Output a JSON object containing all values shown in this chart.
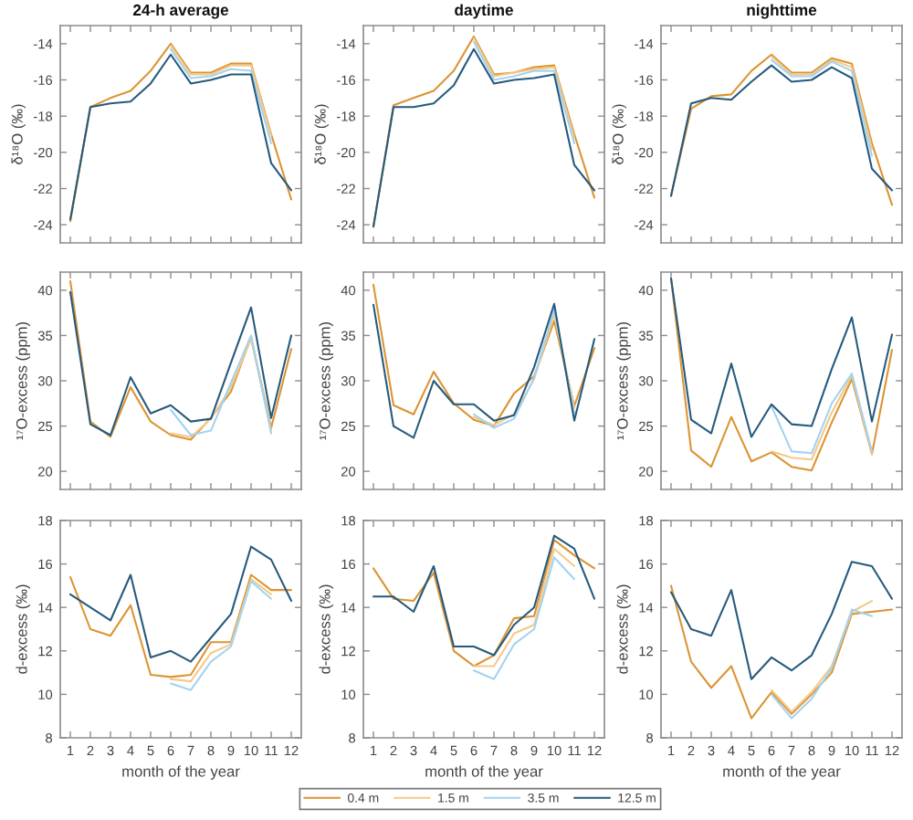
{
  "chart_data": [
    {
      "type": "line",
      "title": "24-h average",
      "ylabel": "δ¹⁸O (‰)",
      "x": [
        1,
        2,
        3,
        4,
        5,
        6,
        7,
        8,
        9,
        10,
        11,
        12
      ],
      "xlim": [
        0.5,
        12.5
      ],
      "xticks": [
        1,
        2,
        3,
        4,
        5,
        6,
        7,
        8,
        9,
        10,
        11,
        12
      ],
      "ylim": [
        -25,
        -13
      ],
      "yticks": [
        -24,
        -22,
        -20,
        -18,
        -16,
        -14
      ],
      "tick_labels": "y",
      "series": [
        {
          "color": "#dc9433",
          "values": [
            -23.8,
            -17.5,
            -17.0,
            -16.6,
            -15.5,
            -14.0,
            -15.6,
            -15.6,
            -15.1,
            -15.1,
            -19.0,
            -22.6
          ]
        },
        {
          "color": "#f5c987",
          "values": [
            null,
            null,
            null,
            null,
            null,
            -14.1,
            -15.7,
            -15.7,
            -15.2,
            -15.2,
            -19.1,
            null
          ]
        },
        {
          "color": "#a3d3f0",
          "values": [
            null,
            null,
            null,
            null,
            null,
            -14.3,
            -15.9,
            -15.8,
            -15.4,
            -15.5,
            -19.5,
            null
          ]
        },
        {
          "color": "#265a7e",
          "values": [
            -23.7,
            -17.5,
            -17.3,
            -17.2,
            -16.2,
            -14.6,
            -16.2,
            -16.0,
            -15.7,
            -15.7,
            -20.6,
            -22.1
          ]
        }
      ]
    },
    {
      "type": "line",
      "title": "daytime",
      "ylabel": "δ¹⁸O (‰)",
      "x": [
        1,
        2,
        3,
        4,
        5,
        6,
        7,
        8,
        9,
        10,
        11,
        12
      ],
      "xlim": [
        0.5,
        12.5
      ],
      "xticks": [
        1,
        2,
        3,
        4,
        5,
        6,
        7,
        8,
        9,
        10,
        11,
        12
      ],
      "ylim": [
        -25,
        -13
      ],
      "yticks": [
        -24,
        -22,
        -20,
        -18,
        -16,
        -14
      ],
      "tick_labels": "y",
      "series": [
        {
          "color": "#dc9433",
          "values": [
            -24.1,
            -17.4,
            -17.0,
            -16.6,
            -15.5,
            -13.6,
            -15.7,
            -15.6,
            -15.3,
            -15.2,
            -19.0,
            -22.5
          ]
        },
        {
          "color": "#f5c987",
          "values": [
            null,
            null,
            null,
            null,
            null,
            -13.7,
            -15.8,
            -15.6,
            -15.4,
            -15.3,
            -19.2,
            null
          ]
        },
        {
          "color": "#a3d3f0",
          "values": [
            null,
            null,
            null,
            null,
            null,
            -13.9,
            -16.0,
            -15.8,
            -15.5,
            -15.5,
            -19.5,
            null
          ]
        },
        {
          "color": "#265a7e",
          "values": [
            -24.1,
            -17.5,
            -17.5,
            -17.3,
            -16.3,
            -14.3,
            -16.2,
            -16.0,
            -15.9,
            -15.7,
            -20.7,
            -22.1
          ]
        }
      ]
    },
    {
      "type": "line",
      "title": "nighttime",
      "ylabel": "δ¹⁸O (‰)",
      "x": [
        1,
        2,
        3,
        4,
        5,
        6,
        7,
        8,
        9,
        10,
        11,
        12
      ],
      "xlim": [
        0.5,
        12.5
      ],
      "xticks": [
        1,
        2,
        3,
        4,
        5,
        6,
        7,
        8,
        9,
        10,
        11,
        12
      ],
      "ylim": [
        -25,
        -13
      ],
      "yticks": [
        -24,
        -22,
        -20,
        -18,
        -16,
        -14
      ],
      "tick_labels": "y",
      "series": [
        {
          "color": "#dc9433",
          "values": [
            -22.4,
            -17.6,
            -16.9,
            -16.8,
            -15.5,
            -14.6,
            -15.6,
            -15.6,
            -14.8,
            -15.1,
            -19.5,
            -22.9
          ]
        },
        {
          "color": "#f5c987",
          "values": [
            null,
            null,
            null,
            null,
            null,
            -14.7,
            -15.7,
            -15.7,
            -14.9,
            -15.3,
            -19.8,
            null
          ]
        },
        {
          "color": "#a3d3f0",
          "values": [
            null,
            null,
            null,
            null,
            null,
            -14.9,
            -15.8,
            -15.8,
            -15.0,
            -15.5,
            -20.2,
            null
          ]
        },
        {
          "color": "#265a7e",
          "values": [
            -22.4,
            -17.3,
            -17.0,
            -17.1,
            -16.1,
            -15.2,
            -16.1,
            -16.0,
            -15.3,
            -15.9,
            -20.9,
            -22.1
          ]
        }
      ]
    },
    {
      "type": "line",
      "ylabel": "¹⁷O-excess (ppm)",
      "x": [
        1,
        2,
        3,
        4,
        5,
        6,
        7,
        8,
        9,
        10,
        11,
        12
      ],
      "xlim": [
        0.5,
        12.5
      ],
      "xticks": [
        1,
        2,
        3,
        4,
        5,
        6,
        7,
        8,
        9,
        10,
        11,
        12
      ],
      "ylim": [
        18,
        42
      ],
      "yticks": [
        20,
        25,
        30,
        35,
        40
      ],
      "tick_labels": "y",
      "series": [
        {
          "color": "#dc9433",
          "values": [
            41.0,
            25.5,
            23.8,
            29.3,
            25.5,
            24.0,
            23.5,
            25.9,
            28.8,
            34.8,
            24.8,
            33.5
          ]
        },
        {
          "color": "#f5c987",
          "values": [
            null,
            null,
            null,
            null,
            null,
            24.2,
            23.8,
            25.8,
            29.3,
            34.6,
            24.5,
            null
          ]
        },
        {
          "color": "#a3d3f0",
          "values": [
            null,
            null,
            null,
            null,
            null,
            26.8,
            24.0,
            24.5,
            29.8,
            35.0,
            24.2,
            null
          ]
        },
        {
          "color": "#265a7e",
          "values": [
            39.8,
            25.2,
            24.0,
            30.4,
            26.4,
            27.3,
            25.5,
            25.8,
            32.0,
            38.1,
            25.9,
            35.0
          ]
        }
      ]
    },
    {
      "type": "line",
      "ylabel": "¹⁷O-excess (ppm)",
      "x": [
        1,
        2,
        3,
        4,
        5,
        6,
        7,
        8,
        9,
        10,
        11,
        12
      ],
      "xlim": [
        0.5,
        12.5
      ],
      "xticks": [
        1,
        2,
        3,
        4,
        5,
        6,
        7,
        8,
        9,
        10,
        11,
        12
      ],
      "ylim": [
        18,
        42
      ],
      "yticks": [
        20,
        25,
        30,
        35,
        40
      ],
      "tick_labels": "y",
      "series": [
        {
          "color": "#dc9433",
          "values": [
            40.6,
            27.3,
            26.3,
            31.0,
            27.5,
            25.7,
            25.0,
            28.6,
            30.5,
            36.6,
            27.2,
            33.6
          ]
        },
        {
          "color": "#f5c987",
          "values": [
            null,
            null,
            null,
            null,
            null,
            26.0,
            25.1,
            26.3,
            30.2,
            37.3,
            27.0,
            null
          ]
        },
        {
          "color": "#a3d3f0",
          "values": [
            null,
            null,
            null,
            null,
            null,
            26.3,
            24.8,
            25.8,
            30.3,
            37.8,
            26.4,
            null
          ]
        },
        {
          "color": "#265a7e",
          "values": [
            38.4,
            25.0,
            23.7,
            30.0,
            27.4,
            27.4,
            25.6,
            26.2,
            31.5,
            38.5,
            25.6,
            34.6
          ]
        }
      ]
    },
    {
      "type": "line",
      "ylabel": "¹⁷O-excess (ppm)",
      "x": [
        1,
        2,
        3,
        4,
        5,
        6,
        7,
        8,
        9,
        10,
        11,
        12
      ],
      "xlim": [
        0.5,
        12.5
      ],
      "xticks": [
        1,
        2,
        3,
        4,
        5,
        6,
        7,
        8,
        9,
        10,
        11,
        12
      ],
      "ylim": [
        18,
        42
      ],
      "yticks": [
        20,
        25,
        30,
        35,
        40
      ],
      "tick_labels": "y",
      "series": [
        {
          "color": "#dc9433",
          "values": [
            41.3,
            22.3,
            20.5,
            26.0,
            21.1,
            22.1,
            20.5,
            20.1,
            25.4,
            30.2,
            21.9,
            33.4
          ]
        },
        {
          "color": "#f5c987",
          "values": [
            null,
            null,
            null,
            null,
            null,
            22.2,
            21.5,
            21.3,
            26.5,
            30.6,
            22.0,
            null
          ]
        },
        {
          "color": "#a3d3f0",
          "values": [
            null,
            null,
            null,
            null,
            null,
            27.2,
            22.2,
            22.0,
            27.5,
            30.8,
            22.2,
            null
          ]
        },
        {
          "color": "#265a7e",
          "values": [
            41.3,
            25.7,
            24.2,
            31.9,
            23.8,
            27.4,
            25.2,
            25.0,
            31.3,
            37.0,
            25.5,
            35.1
          ]
        }
      ]
    },
    {
      "type": "line",
      "ylabel": "d-excess (‰)",
      "xlabel": "month of the year",
      "x": [
        1,
        2,
        3,
        4,
        5,
        6,
        7,
        8,
        9,
        10,
        11,
        12
      ],
      "xlim": [
        0.5,
        12.5
      ],
      "xticks": [
        1,
        2,
        3,
        4,
        5,
        6,
        7,
        8,
        9,
        10,
        11,
        12
      ],
      "ylim": [
        8,
        18
      ],
      "yticks": [
        8,
        10,
        12,
        14,
        16,
        18
      ],
      "series": [
        {
          "color": "#dc9433",
          "values": [
            15.4,
            13.0,
            12.7,
            14.1,
            10.9,
            10.8,
            10.9,
            12.4,
            12.4,
            15.5,
            14.8,
            14.8
          ]
        },
        {
          "color": "#f5c987",
          "values": [
            null,
            null,
            null,
            null,
            null,
            10.7,
            10.6,
            11.9,
            12.3,
            15.3,
            14.6,
            null
          ]
        },
        {
          "color": "#a3d3f0",
          "values": [
            null,
            null,
            null,
            null,
            null,
            10.5,
            10.2,
            11.5,
            12.2,
            15.2,
            14.4,
            null
          ]
        },
        {
          "color": "#265a7e",
          "values": [
            14.6,
            14.0,
            13.4,
            15.5,
            11.7,
            12.0,
            11.5,
            12.6,
            13.7,
            16.8,
            16.2,
            14.3
          ]
        }
      ]
    },
    {
      "type": "line",
      "ylabel": "d-excess (‰)",
      "xlabel": "month of the year",
      "x": [
        1,
        2,
        3,
        4,
        5,
        6,
        7,
        8,
        9,
        10,
        11,
        12
      ],
      "xlim": [
        0.5,
        12.5
      ],
      "xticks": [
        1,
        2,
        3,
        4,
        5,
        6,
        7,
        8,
        9,
        10,
        11,
        12
      ],
      "ylim": [
        8,
        18
      ],
      "yticks": [
        8,
        10,
        12,
        14,
        16,
        18
      ],
      "legend": "bottom",
      "series": [
        {
          "name": "0.4 m",
          "color": "#dc9433",
          "values": [
            15.8,
            14.4,
            14.3,
            15.6,
            12.0,
            11.3,
            11.8,
            13.5,
            13.6,
            17.1,
            16.4,
            15.8
          ]
        },
        {
          "name": "1.5 m",
          "color": "#f5c987",
          "values": [
            null,
            null,
            null,
            null,
            null,
            11.3,
            11.3,
            12.8,
            13.2,
            16.7,
            15.9,
            null
          ]
        },
        {
          "name": "3.5 m",
          "color": "#a3d3f0",
          "values": [
            null,
            null,
            null,
            null,
            null,
            11.1,
            10.7,
            12.3,
            13.0,
            16.3,
            15.3,
            null
          ]
        },
        {
          "name": "12.5 m",
          "color": "#265a7e",
          "values": [
            14.5,
            14.5,
            13.8,
            15.9,
            12.2,
            12.2,
            11.8,
            13.2,
            14.0,
            17.3,
            16.7,
            14.4
          ]
        }
      ]
    },
    {
      "type": "line",
      "ylabel": "d-excess (‰)",
      "xlabel": "month of the year",
      "x": [
        1,
        2,
        3,
        4,
        5,
        6,
        7,
        8,
        9,
        10,
        11,
        12
      ],
      "xlim": [
        0.5,
        12.5
      ],
      "xticks": [
        1,
        2,
        3,
        4,
        5,
        6,
        7,
        8,
        9,
        10,
        11,
        12
      ],
      "ylim": [
        8,
        18
      ],
      "yticks": [
        8,
        10,
        12,
        14,
        16,
        18
      ],
      "series": [
        {
          "color": "#dc9433",
          "values": [
            15.0,
            11.5,
            10.3,
            11.3,
            8.9,
            10.1,
            9.1,
            10.0,
            11.0,
            13.7,
            13.8,
            13.9
          ]
        },
        {
          "color": "#f5c987",
          "values": [
            null,
            null,
            null,
            null,
            null,
            10.2,
            9.2,
            10.1,
            11.3,
            13.8,
            14.3,
            null
          ]
        },
        {
          "color": "#a3d3f0",
          "values": [
            null,
            null,
            null,
            null,
            null,
            10.0,
            8.9,
            9.8,
            11.2,
            13.9,
            13.6,
            null
          ]
        },
        {
          "color": "#265a7e",
          "values": [
            14.7,
            13.0,
            12.7,
            14.8,
            10.7,
            11.7,
            11.1,
            11.8,
            13.7,
            16.1,
            15.9,
            14.4
          ]
        }
      ]
    }
  ]
}
